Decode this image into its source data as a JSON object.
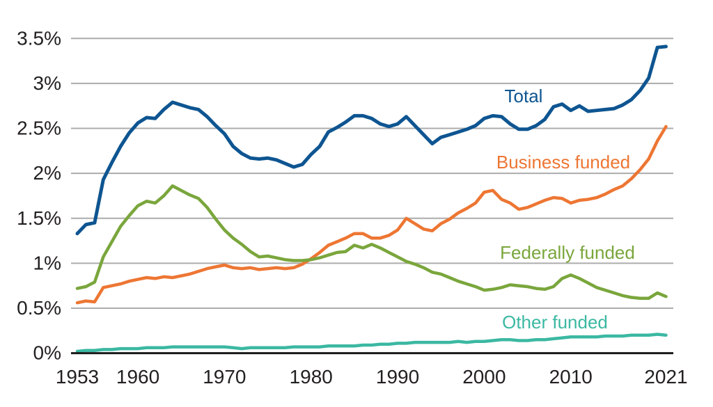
{
  "chart_data": {
    "type": "line",
    "grid": "horizontal-only",
    "legend_position": "inline-labels-right",
    "xlim": [
      1953,
      2021
    ],
    "ylim": [
      0,
      3.5
    ],
    "x": [
      1953,
      1954,
      1955,
      1956,
      1957,
      1958,
      1959,
      1960,
      1961,
      1962,
      1963,
      1964,
      1965,
      1966,
      1967,
      1968,
      1969,
      1970,
      1971,
      1972,
      1973,
      1974,
      1975,
      1976,
      1977,
      1978,
      1979,
      1980,
      1981,
      1982,
      1983,
      1984,
      1985,
      1986,
      1987,
      1988,
      1989,
      1990,
      1991,
      1992,
      1993,
      1994,
      1995,
      1996,
      1997,
      1998,
      1999,
      2000,
      2001,
      2002,
      2003,
      2004,
      2005,
      2006,
      2007,
      2008,
      2009,
      2010,
      2011,
      2012,
      2013,
      2014,
      2015,
      2016,
      2017,
      2018,
      2019,
      2020,
      2021
    ],
    "xticks": [
      1953,
      1960,
      1970,
      1980,
      1990,
      2000,
      2010,
      2021
    ],
    "yticks": [
      {
        "label": "3.5%",
        "value": 3.5
      },
      {
        "label": "3%",
        "value": 3.0
      },
      {
        "label": "2.5%",
        "value": 2.5
      },
      {
        "label": "2%",
        "value": 2.0
      },
      {
        "label": "1.5%",
        "value": 1.5
      },
      {
        "label": "1%",
        "value": 1.0
      },
      {
        "label": "0.5%",
        "value": 0.5
      },
      {
        "label": "0%",
        "value": 0.0
      }
    ],
    "series": [
      {
        "name": "total",
        "label": "Total",
        "color": "#0E5591",
        "values": [
          1.33,
          1.43,
          1.45,
          1.93,
          2.12,
          2.3,
          2.45,
          2.56,
          2.62,
          2.61,
          2.71,
          2.79,
          2.76,
          2.73,
          2.71,
          2.63,
          2.53,
          2.44,
          2.3,
          2.22,
          2.17,
          2.16,
          2.17,
          2.15,
          2.11,
          2.07,
          2.1,
          2.21,
          2.3,
          2.46,
          2.51,
          2.57,
          2.64,
          2.64,
          2.61,
          2.55,
          2.52,
          2.55,
          2.63,
          2.53,
          2.43,
          2.33,
          2.4,
          2.43,
          2.46,
          2.49,
          2.53,
          2.61,
          2.64,
          2.63,
          2.55,
          2.49,
          2.49,
          2.53,
          2.6,
          2.74,
          2.77,
          2.7,
          2.75,
          2.69,
          2.7,
          2.71,
          2.72,
          2.76,
          2.82,
          2.92,
          3.06,
          3.4,
          3.41
        ]
      },
      {
        "name": "business_funded",
        "label": "Business funded",
        "color": "#ED7633",
        "values": [
          0.56,
          0.58,
          0.57,
          0.73,
          0.75,
          0.77,
          0.8,
          0.82,
          0.84,
          0.83,
          0.85,
          0.84,
          0.86,
          0.88,
          0.91,
          0.94,
          0.96,
          0.98,
          0.95,
          0.94,
          0.95,
          0.93,
          0.94,
          0.95,
          0.94,
          0.95,
          0.99,
          1.05,
          1.12,
          1.2,
          1.24,
          1.28,
          1.33,
          1.33,
          1.28,
          1.28,
          1.31,
          1.37,
          1.5,
          1.44,
          1.38,
          1.36,
          1.44,
          1.49,
          1.56,
          1.61,
          1.67,
          1.79,
          1.81,
          1.71,
          1.67,
          1.6,
          1.62,
          1.66,
          1.7,
          1.73,
          1.72,
          1.67,
          1.7,
          1.71,
          1.73,
          1.77,
          1.82,
          1.86,
          1.94,
          2.04,
          2.16,
          2.36,
          2.52
        ]
      },
      {
        "name": "federally_funded",
        "label": "Federally funded",
        "color": "#7AA63C",
        "values": [
          0.72,
          0.74,
          0.79,
          1.07,
          1.24,
          1.41,
          1.53,
          1.64,
          1.69,
          1.67,
          1.75,
          1.86,
          1.81,
          1.76,
          1.72,
          1.62,
          1.49,
          1.37,
          1.28,
          1.21,
          1.13,
          1.07,
          1.08,
          1.06,
          1.04,
          1.03,
          1.03,
          1.04,
          1.06,
          1.09,
          1.12,
          1.13,
          1.2,
          1.17,
          1.21,
          1.17,
          1.12,
          1.07,
          1.02,
          0.99,
          0.95,
          0.9,
          0.88,
          0.84,
          0.8,
          0.77,
          0.74,
          0.7,
          0.71,
          0.73,
          0.76,
          0.75,
          0.74,
          0.72,
          0.71,
          0.74,
          0.83,
          0.87,
          0.83,
          0.78,
          0.73,
          0.7,
          0.67,
          0.64,
          0.62,
          0.61,
          0.61,
          0.67,
          0.63
        ]
      },
      {
        "name": "other_funded",
        "label": "Other funded",
        "color": "#3BB8A2",
        "values": [
          0.02,
          0.03,
          0.03,
          0.04,
          0.04,
          0.05,
          0.05,
          0.05,
          0.06,
          0.06,
          0.06,
          0.07,
          0.07,
          0.07,
          0.07,
          0.07,
          0.07,
          0.07,
          0.06,
          0.05,
          0.06,
          0.06,
          0.06,
          0.06,
          0.06,
          0.07,
          0.07,
          0.07,
          0.07,
          0.08,
          0.08,
          0.08,
          0.08,
          0.09,
          0.09,
          0.1,
          0.1,
          0.11,
          0.11,
          0.12,
          0.12,
          0.12,
          0.12,
          0.12,
          0.13,
          0.12,
          0.13,
          0.13,
          0.14,
          0.15,
          0.15,
          0.14,
          0.14,
          0.15,
          0.15,
          0.16,
          0.17,
          0.18,
          0.18,
          0.18,
          0.18,
          0.19,
          0.19,
          0.19,
          0.2,
          0.2,
          0.2,
          0.21,
          0.2
        ]
      }
    ]
  },
  "style": {
    "grid_color": "#ACACAC",
    "axis_color": "#1A1A1A",
    "tick_text_color": "#232021",
    "background": "#FFFFFF"
  }
}
